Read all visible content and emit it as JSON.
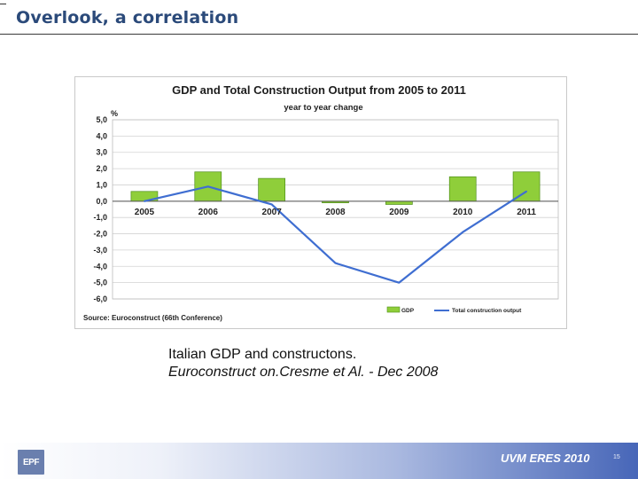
{
  "slide": {
    "title": "Overlook, a correlation",
    "caption_line1": "Italian GDP and constructons.",
    "caption_line2": "Euroconstruct on.Cresme et  Al. - Dec 2008",
    "footer_text": "UVM  ERES 2010",
    "logo_text": "EPF",
    "page_number": "15"
  },
  "colors": {
    "title": "#2b4a7a",
    "bar_fill": "#8fce3a",
    "bar_stroke": "#4f8f1c",
    "line": "#3f6ed1",
    "grid": "#d2d2d2"
  },
  "chart_data": {
    "type": "bar",
    "title": "GDP and Total Construction Output from 2005 to 2011",
    "subtitle": "year to year change",
    "ylabel": "%",
    "xlabel": "",
    "source": "Source: Euroconstruct (66th Conference)",
    "categories": [
      "2005",
      "2006",
      "2007",
      "2008",
      "2009",
      "2010",
      "2011"
    ],
    "ylim": [
      -6.0,
      5.0
    ],
    "yticks": [
      "5,0",
      "4,0",
      "3,0",
      "2,0",
      "1,0",
      "0,0",
      "-1,0",
      "-2,0",
      "-3,0",
      "-4,0",
      "-5,0",
      "-6,0"
    ],
    "ytick_values": [
      5,
      4,
      3,
      2,
      1,
      0,
      -1,
      -2,
      -3,
      -4,
      -5,
      -6
    ],
    "grid": true,
    "legend_position": "bottom-right",
    "series": [
      {
        "name": "GDP",
        "kind": "bar",
        "values": [
          0.6,
          1.8,
          1.4,
          -0.1,
          -0.2,
          1.5,
          1.8
        ]
      },
      {
        "name": "Total construction output",
        "kind": "line",
        "values": [
          0.0,
          0.9,
          -0.2,
          -3.8,
          -5.0,
          -1.9,
          0.6
        ]
      }
    ]
  }
}
